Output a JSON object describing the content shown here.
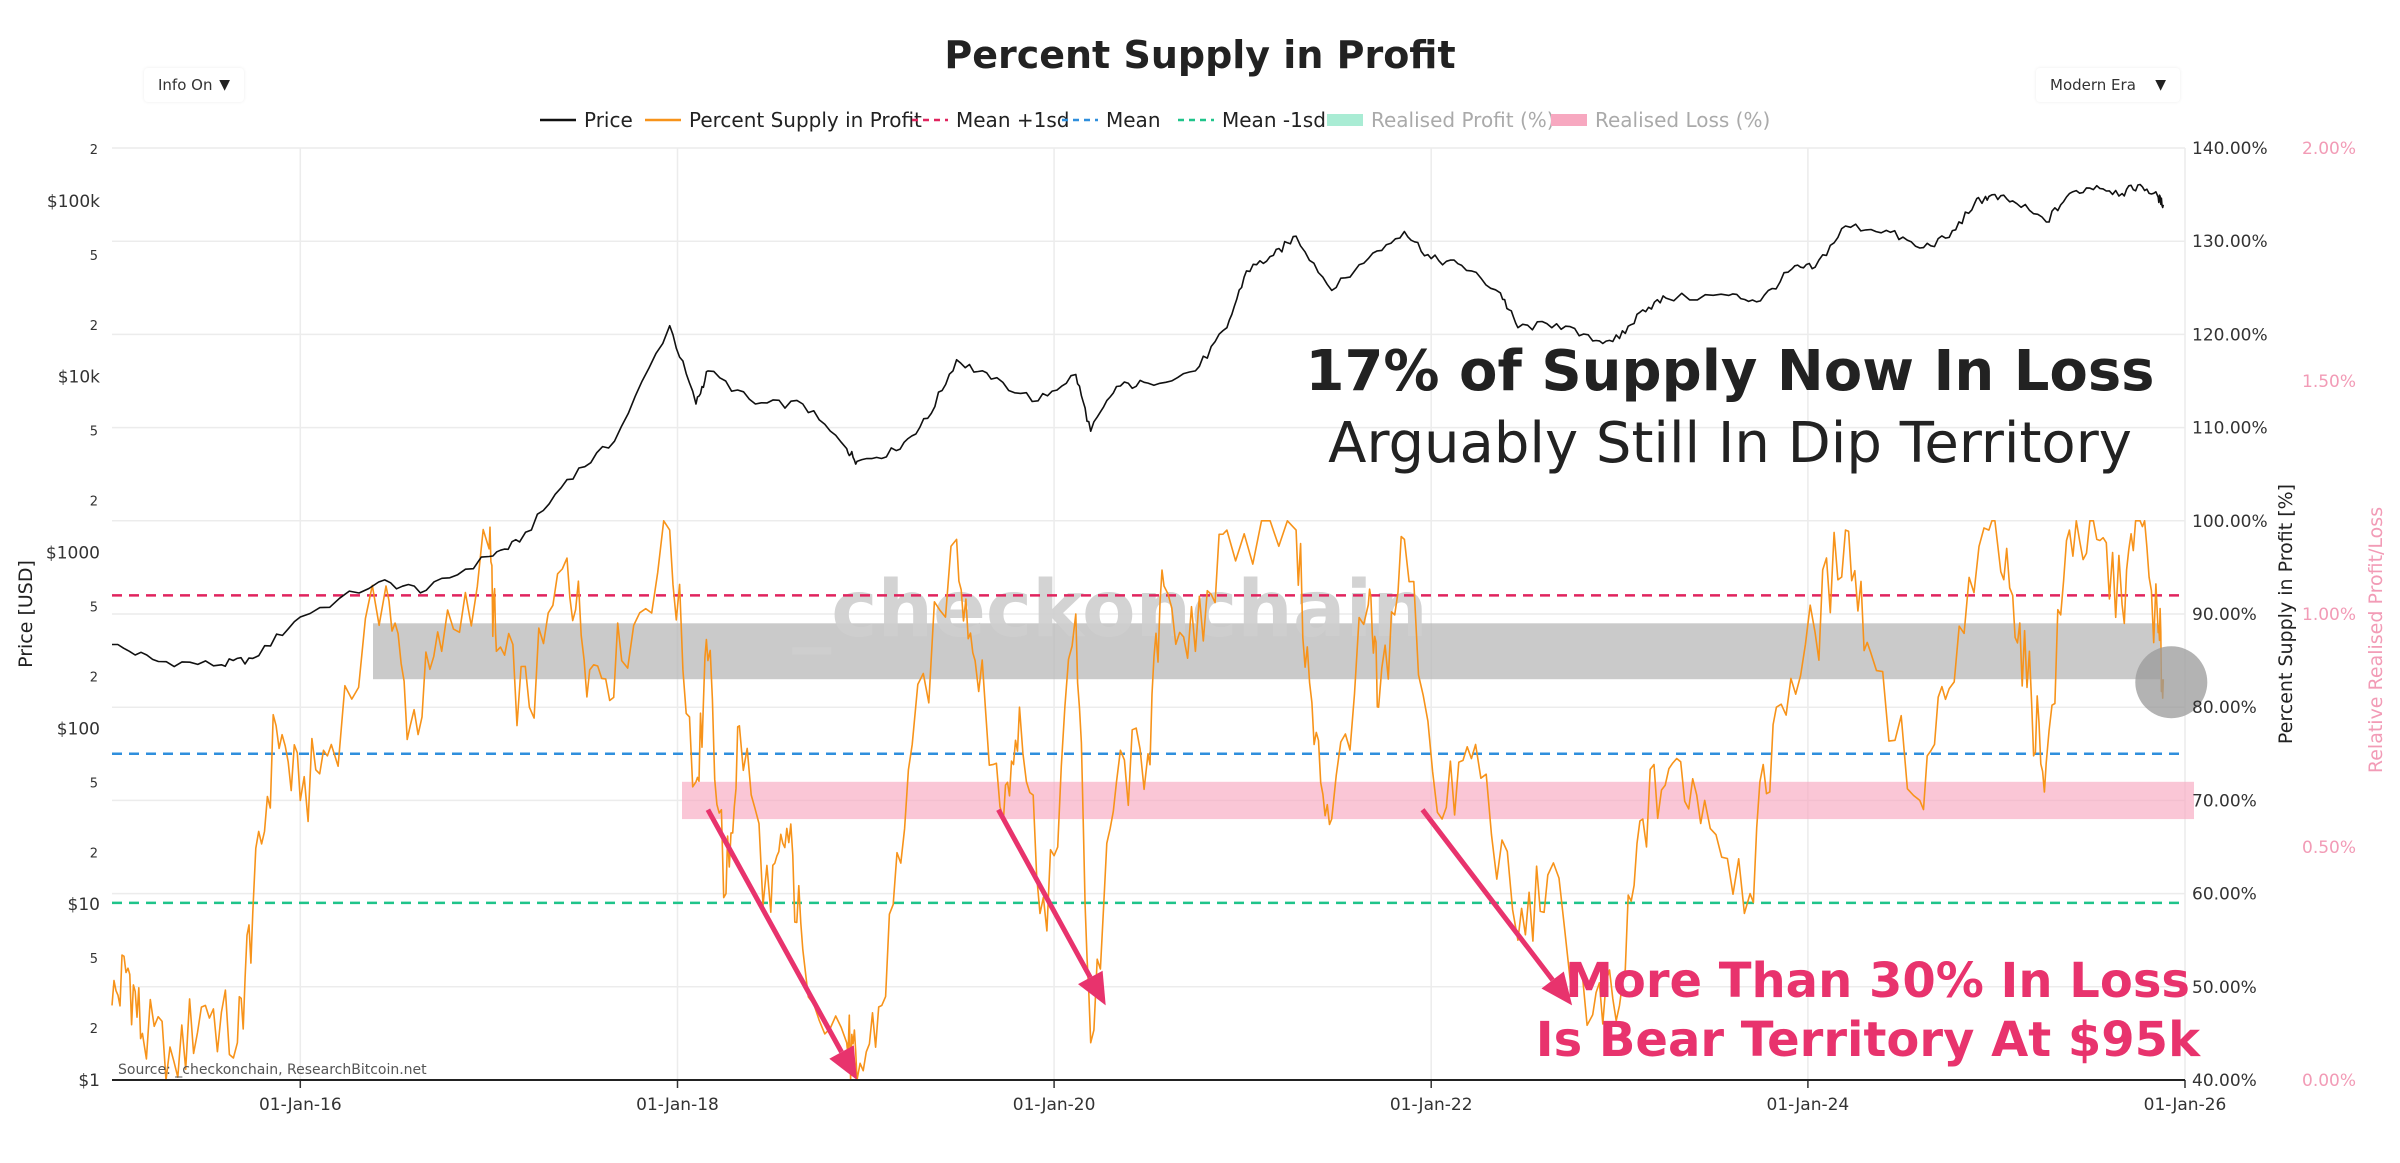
{
  "title": "Percent Supply in Profit",
  "controls": {
    "info_toggle": "Info On",
    "era_select": "Modern Era"
  },
  "watermark": "_checkonchain",
  "source": "Source: _checkonchain, ResearchBitcoin.net",
  "annotations": {
    "headline_bold": "17% of Supply Now In Loss",
    "headline_light": "Arguably Still In Dip Territory",
    "bear_line1": "More Than 30% In Loss",
    "bear_line2": "Is Bear Territory At $95k"
  },
  "colors": {
    "price": "#111111",
    "supply": "#f7931a",
    "mean_plus": "#e0245e",
    "mean": "#2f8fdd",
    "mean_minus": "#1fc48a",
    "realised_profit": "#a9ecd4",
    "realised_loss": "#f7a8c0",
    "annotation_pink": "#e8336d",
    "gray_band": "#b5b5b5",
    "headline": "#222222"
  },
  "chart_data": {
    "type": "line",
    "title": "Percent Supply in Profit",
    "legend": [
      "Price",
      "Percent Supply in Profit",
      "Mean +1sd",
      "Mean",
      "Mean -1sd",
      "Realised Profit (%)",
      "Realised Loss (%)"
    ],
    "legend_position": "top-center",
    "x_axis": {
      "tick_labels": [
        "01-Jan-16",
        "01-Jan-18",
        "01-Jan-20",
        "01-Jan-22",
        "01-Jan-24",
        "01-Jan-26"
      ],
      "range": [
        "2015-01-01",
        "2026-01-01"
      ]
    },
    "y_left": {
      "label": "Price [USD]",
      "scale": "log",
      "range": [
        1,
        200000
      ],
      "tick_labels": [
        "$1",
        "2",
        "5",
        "$10",
        "2",
        "5",
        "$100",
        "2",
        "5",
        "$1000",
        "2",
        "5",
        "$10k",
        "2",
        "5",
        "$100k",
        "2"
      ]
    },
    "y_right": {
      "label": "Percent Supply in Profit [%]",
      "range": [
        40,
        140
      ],
      "tick_labels": [
        "40.00%",
        "50.00%",
        "60.00%",
        "70.00%",
        "80.00%",
        "90.00%",
        "100.00%",
        "110.00%",
        "120.00%",
        "130.00%",
        "140.00%"
      ]
    },
    "y_right2": {
      "label": "Relative Realised Profit/Loss",
      "range": [
        0,
        2
      ],
      "tick_labels": [
        "0.00%",
        "0.50%",
        "1.00%",
        "1.50%",
        "2.00%"
      ]
    },
    "reference_lines": [
      {
        "name": "Mean +1sd",
        "value": 92
      },
      {
        "name": "Mean",
        "value": 75
      },
      {
        "name": "Mean -1sd",
        "value": 59
      }
    ],
    "bands": [
      {
        "name": "Current level",
        "from": 83,
        "to": 89
      },
      {
        "name": "Bear territory",
        "from": 68,
        "to": 72
      }
    ],
    "series": [
      {
        "name": "Price",
        "axis": "left",
        "points": [
          [
            "2015-01-01",
            300
          ],
          [
            "2015-04-01",
            240
          ],
          [
            "2015-08-01",
            230
          ],
          [
            "2015-10-01",
            250
          ],
          [
            "2016-01-01",
            430
          ],
          [
            "2016-06-01",
            680
          ],
          [
            "2016-09-01",
            610
          ],
          [
            "2017-01-01",
            950
          ],
          [
            "2017-03-01",
            1150
          ],
          [
            "2017-06-01",
            2600
          ],
          [
            "2017-09-01",
            4300
          ],
          [
            "2017-12-17",
            19500
          ],
          [
            "2018-02-06",
            7000
          ],
          [
            "2018-03-01",
            10800
          ],
          [
            "2018-06-01",
            7000
          ],
          [
            "2018-09-01",
            7000
          ],
          [
            "2018-11-25",
            3900
          ],
          [
            "2018-12-15",
            3300
          ],
          [
            "2019-03-01",
            3800
          ],
          [
            "2019-05-01",
            5800
          ],
          [
            "2019-06-26",
            12500
          ],
          [
            "2019-09-01",
            9700
          ],
          [
            "2019-12-01",
            7300
          ],
          [
            "2020-02-12",
            10300
          ],
          [
            "2020-03-12",
            4900
          ],
          [
            "2020-05-01",
            8800
          ],
          [
            "2020-07-01",
            9200
          ],
          [
            "2020-10-01",
            10800
          ],
          [
            "2020-12-01",
            19000
          ],
          [
            "2021-01-08",
            40000
          ],
          [
            "2021-03-01",
            49000
          ],
          [
            "2021-04-14",
            63000
          ],
          [
            "2021-06-22",
            31000
          ],
          [
            "2021-09-01",
            47000
          ],
          [
            "2021-11-10",
            67000
          ],
          [
            "2022-01-01",
            47000
          ],
          [
            "2022-03-01",
            43000
          ],
          [
            "2022-05-15",
            30000
          ],
          [
            "2022-06-18",
            19000
          ],
          [
            "2022-09-01",
            20000
          ],
          [
            "2022-11-10",
            16000
          ],
          [
            "2023-01-01",
            16500
          ],
          [
            "2023-02-15",
            24000
          ],
          [
            "2023-04-01",
            28000
          ],
          [
            "2023-08-01",
            29000
          ],
          [
            "2023-10-01",
            27000
          ],
          [
            "2023-12-01",
            41000
          ],
          [
            "2024-01-15",
            42000
          ],
          [
            "2024-03-14",
            72000
          ],
          [
            "2024-06-01",
            68000
          ],
          [
            "2024-08-05",
            54000
          ],
          [
            "2024-10-01",
            62000
          ],
          [
            "2024-11-20",
            98000
          ],
          [
            "2024-12-17",
            106000
          ],
          [
            "2025-02-01",
            100000
          ],
          [
            "2025-04-07",
            76000
          ],
          [
            "2025-05-22",
            110000
          ],
          [
            "2025-07-14",
            122000
          ],
          [
            "2025-09-01",
            110000
          ],
          [
            "2025-10-06",
            124000
          ],
          [
            "2025-11-10",
            105000
          ],
          [
            "2025-11-20",
            95000
          ]
        ]
      },
      {
        "name": "Percent Supply in Profit",
        "axis": "right",
        "points": [
          [
            "2015-01-01",
            48
          ],
          [
            "2015-02-01",
            52
          ],
          [
            "2015-03-01",
            45
          ],
          [
            "2015-05-01",
            42
          ],
          [
            "2015-07-01",
            48
          ],
          [
            "2015-09-01",
            44
          ],
          [
            "2015-10-01",
            58
          ],
          [
            "2015-11-15",
            78
          ],
          [
            "2016-01-01",
            70
          ],
          [
            "2016-03-01",
            76
          ],
          [
            "2016-06-15",
            93
          ],
          [
            "2016-08-01",
            78
          ],
          [
            "2016-10-01",
            86
          ],
          [
            "2017-01-01",
            97
          ],
          [
            "2017-01-15",
            86
          ],
          [
            "2017-03-20",
            80
          ],
          [
            "2017-06-01",
            96
          ],
          [
            "2017-07-15",
            84
          ],
          [
            "2017-09-15",
            85
          ],
          [
            "2017-12-17",
            99
          ],
          [
            "2018-02-06",
            72
          ],
          [
            "2018-03-01",
            85
          ],
          [
            "2018-04-05",
            60
          ],
          [
            "2018-05-01",
            78
          ],
          [
            "2018-07-01",
            58
          ],
          [
            "2018-08-01",
            67
          ],
          [
            "2018-09-01",
            54
          ],
          [
            "2018-11-25",
            44
          ],
          [
            "2018-12-15",
            40
          ],
          [
            "2019-02-01",
            48
          ],
          [
            "2019-04-01",
            76
          ],
          [
            "2019-06-26",
            98
          ],
          [
            "2019-08-01",
            85
          ],
          [
            "2019-09-25",
            68
          ],
          [
            "2019-10-26",
            80
          ],
          [
            "2019-12-18",
            56
          ],
          [
            "2020-02-12",
            90
          ],
          [
            "2020-03-12",
            44
          ],
          [
            "2020-05-01",
            72
          ],
          [
            "2020-07-01",
            75
          ],
          [
            "2020-08-01",
            93
          ],
          [
            "2020-10-01",
            86
          ],
          [
            "2020-12-01",
            99
          ],
          [
            "2021-04-14",
            99
          ],
          [
            "2021-05-19",
            76
          ],
          [
            "2021-06-22",
            68
          ],
          [
            "2021-09-01",
            91
          ],
          [
            "2021-09-21",
            80
          ],
          [
            "2021-11-10",
            98
          ],
          [
            "2022-01-22",
            68
          ],
          [
            "2022-03-28",
            76
          ],
          [
            "2022-06-18",
            55
          ],
          [
            "2022-08-15",
            62
          ],
          [
            "2022-11-10",
            47
          ],
          [
            "2023-01-01",
            48
          ],
          [
            "2023-02-15",
            68
          ],
          [
            "2023-04-14",
            74
          ],
          [
            "2023-06-15",
            70
          ],
          [
            "2023-09-11",
            60
          ],
          [
            "2023-11-01",
            80
          ],
          [
            "2024-01-15",
            88
          ],
          [
            "2024-03-14",
            99
          ],
          [
            "2024-05-01",
            86
          ],
          [
            "2024-08-05",
            70
          ],
          [
            "2024-10-01",
            82
          ],
          [
            "2024-12-17",
            99
          ],
          [
            "2025-02-01",
            92
          ],
          [
            "2025-03-10",
            80
          ],
          [
            "2025-04-07",
            74
          ],
          [
            "2025-05-22",
            99
          ],
          [
            "2025-07-14",
            98
          ],
          [
            "2025-09-01",
            91
          ],
          [
            "2025-10-06",
            100
          ],
          [
            "2025-11-10",
            88
          ],
          [
            "2025-11-20",
            83
          ]
        ]
      }
    ]
  }
}
